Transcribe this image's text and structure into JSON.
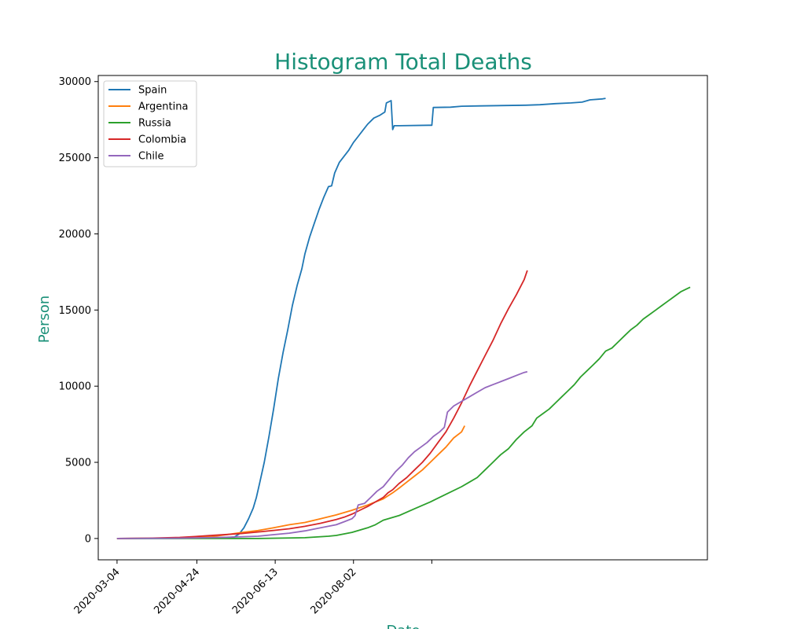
{
  "chart_data": {
    "type": "line",
    "title": "Histogram Total Deaths",
    "xlabel": "Date",
    "ylabel": "Person",
    "title_color": "#1a9078",
    "x_tick_labels": [
      "2020-03-04",
      "2020-04-24",
      "2020-06-13",
      "2020-08-02",
      ""
    ],
    "x_ticks_index": [
      0,
      51,
      101,
      151,
      201
    ],
    "y_ticks": [
      0,
      5000,
      10000,
      15000,
      20000,
      25000,
      30000
    ],
    "x_range_index": [
      -12,
      252
    ],
    "ylim": [
      -1400,
      30400
    ],
    "grid": false,
    "legend_position": "top-left",
    "series": [
      {
        "name": "Spain",
        "color": "#1f77b4",
        "points": [
          [
            0,
            0
          ],
          [
            40,
            10
          ],
          [
            70,
            50
          ],
          [
            75,
            100
          ],
          [
            78,
            300
          ],
          [
            81,
            700
          ],
          [
            84,
            1300
          ],
          [
            87,
            2000
          ],
          [
            89,
            2700
          ],
          [
            91,
            3600
          ],
          [
            94,
            5000
          ],
          [
            97,
            6700
          ],
          [
            100,
            8500
          ],
          [
            103,
            10500
          ],
          [
            106,
            12200
          ],
          [
            109,
            13700
          ],
          [
            112,
            15300
          ],
          [
            115,
            16600
          ],
          [
            118,
            17700
          ],
          [
            120,
            18700
          ],
          [
            123,
            19800
          ],
          [
            126,
            20700
          ],
          [
            129,
            21600
          ],
          [
            132,
            22400
          ],
          [
            135,
            23100
          ],
          [
            137,
            23150
          ],
          [
            139,
            24000
          ],
          [
            142,
            24700
          ],
          [
            145,
            25100
          ],
          [
            148,
            25500
          ],
          [
            151,
            26000
          ],
          [
            154,
            26400
          ],
          [
            157,
            26800
          ],
          [
            160,
            27200
          ],
          [
            164,
            27600
          ],
          [
            166,
            27700
          ],
          [
            168,
            27800
          ],
          [
            171,
            28000
          ],
          [
            172,
            28600
          ],
          [
            175,
            28750
          ],
          [
            176,
            26850
          ],
          [
            177,
            27100
          ],
          [
            180,
            27100
          ],
          [
            199,
            27130
          ],
          [
            201,
            27130
          ],
          [
            202,
            28300
          ],
          [
            213,
            28320
          ],
          [
            220,
            28380
          ],
          [
            232,
            28400
          ],
          [
            261,
            28450
          ],
          [
            270,
            28480
          ],
          [
            280,
            28550
          ],
          [
            290,
            28600
          ],
          [
            297,
            28650
          ],
          [
            302,
            28800
          ],
          [
            310,
            28860
          ],
          [
            312,
            28900
          ]
        ]
      },
      {
        "name": "Argentina",
        "color": "#ff7f0e",
        "points": [
          [
            0,
            0
          ],
          [
            30,
            20
          ],
          [
            60,
            120
          ],
          [
            70,
            250
          ],
          [
            80,
            400
          ],
          [
            90,
            520
          ],
          [
            100,
            700
          ],
          [
            110,
            900
          ],
          [
            120,
            1050
          ],
          [
            130,
            1300
          ],
          [
            140,
            1550
          ],
          [
            150,
            1850
          ],
          [
            160,
            2200
          ],
          [
            170,
            2600
          ],
          [
            176,
            3000
          ],
          [
            180,
            3300
          ],
          [
            185,
            3700
          ],
          [
            190,
            4100
          ],
          [
            195,
            4500
          ],
          [
            200,
            5000
          ],
          [
            205,
            5500
          ],
          [
            210,
            6000
          ],
          [
            215,
            6600
          ],
          [
            220,
            7000
          ],
          [
            222,
            7400
          ]
        ]
      },
      {
        "name": "Russia",
        "color": "#2ca02c",
        "points": [
          [
            0,
            0
          ],
          [
            90,
            0
          ],
          [
            120,
            50
          ],
          [
            135,
            150
          ],
          [
            140,
            200
          ],
          [
            150,
            400
          ],
          [
            160,
            700
          ],
          [
            165,
            900
          ],
          [
            170,
            1200
          ],
          [
            180,
            1500
          ],
          [
            190,
            1950
          ],
          [
            200,
            2400
          ],
          [
            210,
            2900
          ],
          [
            220,
            3400
          ],
          [
            225,
            3700
          ],
          [
            230,
            4000
          ],
          [
            235,
            4500
          ],
          [
            240,
            5000
          ],
          [
            245,
            5500
          ],
          [
            250,
            5900
          ],
          [
            255,
            6500
          ],
          [
            260,
            7000
          ],
          [
            265,
            7400
          ],
          [
            268,
            7900
          ],
          [
            272,
            8200
          ],
          [
            276,
            8500
          ],
          [
            280,
            8900
          ],
          [
            284,
            9300
          ],
          [
            288,
            9700
          ],
          [
            292,
            10100
          ],
          [
            296,
            10600
          ],
          [
            300,
            11000
          ],
          [
            304,
            11400
          ],
          [
            308,
            11800
          ],
          [
            312,
            12300
          ],
          [
            316,
            12500
          ],
          [
            320,
            12900
          ],
          [
            324,
            13300
          ],
          [
            328,
            13700
          ],
          [
            332,
            14000
          ],
          [
            336,
            14400
          ],
          [
            340,
            14700
          ],
          [
            344,
            15000
          ],
          [
            348,
            15300
          ],
          [
            352,
            15600
          ],
          [
            356,
            15900
          ],
          [
            360,
            16200
          ],
          [
            364,
            16400
          ],
          [
            366,
            16500
          ]
        ]
      },
      {
        "name": "Colombia",
        "color": "#d62728",
        "points": [
          [
            0,
            0
          ],
          [
            20,
            20
          ],
          [
            40,
            70
          ],
          [
            50,
            130
          ],
          [
            60,
            200
          ],
          [
            70,
            260
          ],
          [
            80,
            330
          ],
          [
            90,
            430
          ],
          [
            100,
            530
          ],
          [
            110,
            640
          ],
          [
            120,
            800
          ],
          [
            130,
            1000
          ],
          [
            140,
            1250
          ],
          [
            145,
            1400
          ],
          [
            150,
            1600
          ],
          [
            155,
            1850
          ],
          [
            160,
            2100
          ],
          [
            165,
            2400
          ],
          [
            170,
            2700
          ],
          [
            173,
            3000
          ],
          [
            176,
            3200
          ],
          [
            180,
            3600
          ],
          [
            185,
            4000
          ],
          [
            190,
            4500
          ],
          [
            195,
            5000
          ],
          [
            200,
            5600
          ],
          [
            205,
            6300
          ],
          [
            210,
            7000
          ],
          [
            215,
            7900
          ],
          [
            220,
            8900
          ],
          [
            225,
            10000
          ],
          [
            230,
            11000
          ],
          [
            235,
            12000
          ],
          [
            240,
            13000
          ],
          [
            245,
            14100
          ],
          [
            250,
            15100
          ],
          [
            255,
            16000
          ],
          [
            260,
            17000
          ],
          [
            262,
            17600
          ]
        ]
      },
      {
        "name": "Chile",
        "color": "#9467bd",
        "points": [
          [
            0,
            0
          ],
          [
            40,
            20
          ],
          [
            70,
            80
          ],
          [
            90,
            150
          ],
          [
            100,
            250
          ],
          [
            110,
            350
          ],
          [
            120,
            500
          ],
          [
            130,
            700
          ],
          [
            140,
            900
          ],
          [
            145,
            1100
          ],
          [
            150,
            1300
          ],
          [
            152,
            1500
          ],
          [
            154,
            2200
          ],
          [
            158,
            2300
          ],
          [
            162,
            2700
          ],
          [
            166,
            3100
          ],
          [
            170,
            3400
          ],
          [
            174,
            3900
          ],
          [
            178,
            4400
          ],
          [
            182,
            4800
          ],
          [
            186,
            5300
          ],
          [
            190,
            5700
          ],
          [
            194,
            6000
          ],
          [
            198,
            6300
          ],
          [
            202,
            6700
          ],
          [
            206,
            7000
          ],
          [
            209,
            7300
          ],
          [
            211,
            8300
          ],
          [
            215,
            8700
          ],
          [
            220,
            9000
          ],
          [
            225,
            9300
          ],
          [
            230,
            9600
          ],
          [
            235,
            9900
          ],
          [
            240,
            10100
          ],
          [
            245,
            10300
          ],
          [
            250,
            10500
          ],
          [
            255,
            10700
          ],
          [
            260,
            10900
          ],
          [
            262,
            10950
          ]
        ]
      }
    ]
  }
}
